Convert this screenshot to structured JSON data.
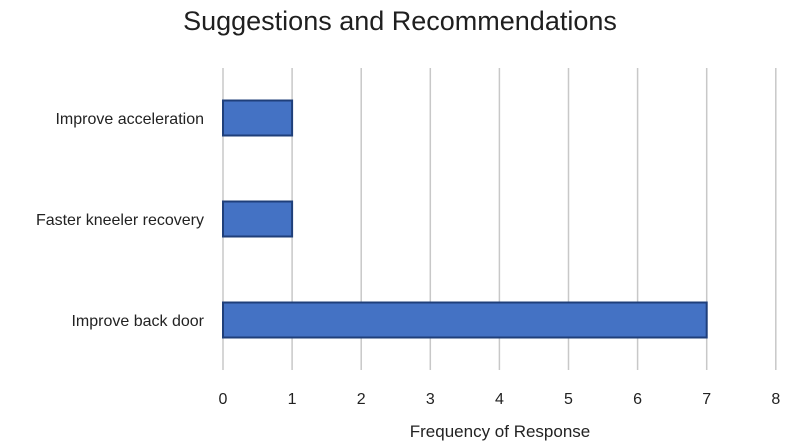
{
  "chart_data": {
    "type": "bar",
    "orientation": "horizontal",
    "title": "Suggestions and Recommendations",
    "xlabel": "Frequency of Response",
    "ylabel": "",
    "categories": [
      "Improve acceleration",
      "Faster kneeler recovery",
      "Improve back door"
    ],
    "values": [
      1,
      1,
      7
    ],
    "xlim": [
      0,
      8
    ],
    "x_ticks": [
      "0",
      "1",
      "2",
      "3",
      "4",
      "5",
      "6",
      "7",
      "8"
    ],
    "grid": "vertical",
    "legend": "none",
    "colors": {
      "bar_fill": "#4472C4",
      "bar_stroke": "#1F3F7A",
      "grid": "#C8C8C8",
      "text": "#222222"
    }
  }
}
